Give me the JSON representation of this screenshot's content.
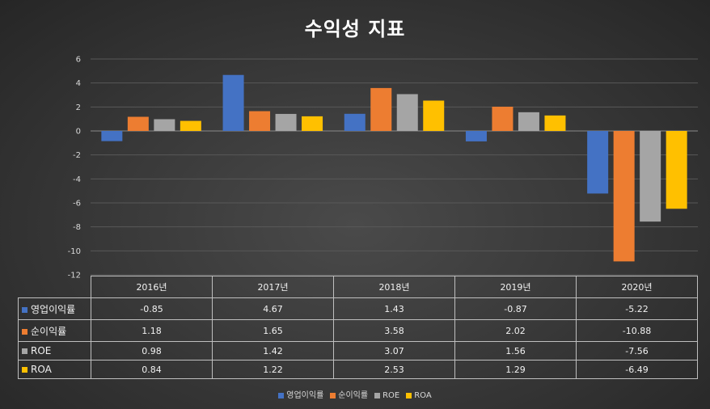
{
  "chart_data": {
    "type": "bar",
    "title": "수익성 지표",
    "categories": [
      "2016년",
      "2017년",
      "2018년",
      "2019년",
      "2020년"
    ],
    "series": [
      {
        "name": "영업이익률",
        "color": "#4472c4",
        "values": [
          -0.85,
          4.67,
          1.43,
          -0.87,
          -5.22
        ],
        "labels": [
          "-0.85",
          "4.67",
          "1.43",
          "-0.87",
          "-5.22"
        ]
      },
      {
        "name": "순이익률",
        "color": "#ed7d31",
        "values": [
          1.18,
          1.65,
          3.58,
          2.02,
          -10.88
        ],
        "labels": [
          "1.18",
          "1.65",
          "3.58",
          "2.02",
          "-10.88"
        ]
      },
      {
        "name": "ROE",
        "color": "#a5a5a5",
        "values": [
          0.98,
          1.42,
          3.07,
          1.56,
          -7.56
        ],
        "labels": [
          "0.98",
          "1.42",
          "3.07",
          "1.56",
          "-7.56"
        ]
      },
      {
        "name": "ROA",
        "color": "#ffc000",
        "values": [
          0.84,
          1.22,
          2.53,
          1.29,
          -6.49
        ],
        "labels": [
          "0.84",
          "1.22",
          "2.53",
          "1.29",
          "-6.49"
        ]
      }
    ],
    "ylim": [
      -12,
      6
    ],
    "yticks": [
      "6",
      "4",
      "2",
      "0",
      "-2",
      "-4",
      "-6",
      "-8",
      "-10",
      "-12"
    ],
    "grid": true,
    "legend_position": "bottom",
    "data_table": true
  }
}
